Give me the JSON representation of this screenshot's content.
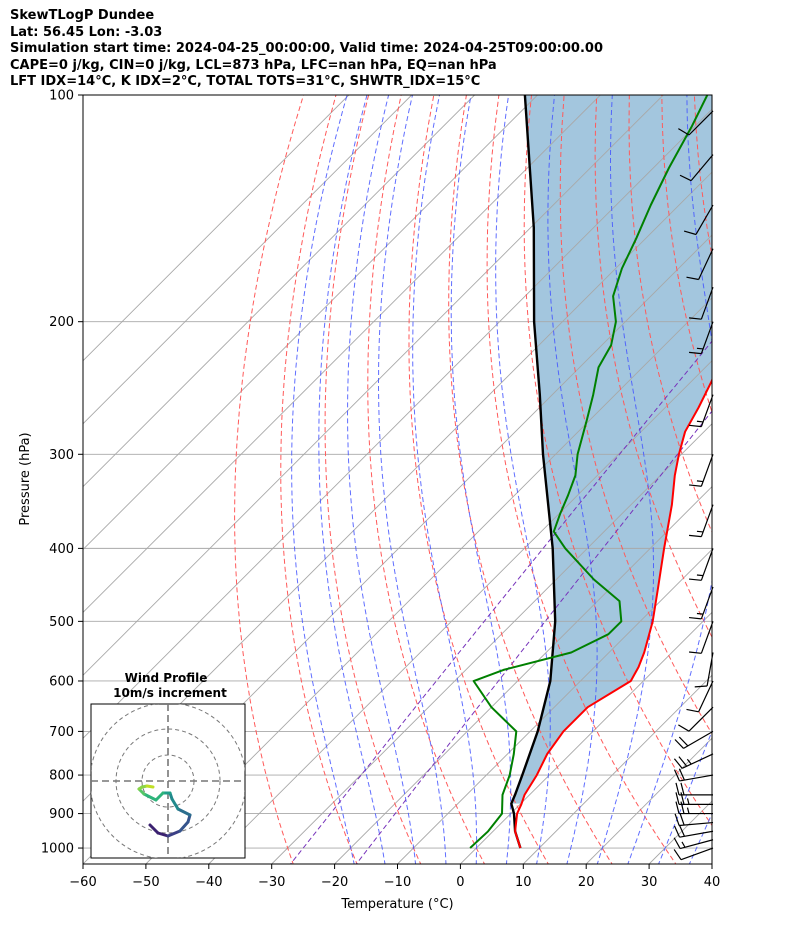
{
  "header": {
    "line1": "SkewTLogP Dundee",
    "line2": "Lat: 56.45   Lon: -3.03",
    "line3": "Simulation start time: 2024-04-25_00:00:00, Valid time: 2024-04-25T09:00:00.00",
    "line4": "CAPE=0 j/kg, CIN=0 j/kg, LCL=873 hPa, LFC=nan hPa, EQ=nan hPa",
    "line5": "LFT IDX=14°C, K IDX=2°C, TOTAL TOTS=31°C, SHWTR_IDX=15°C"
  },
  "colors": {
    "temperature": "#ff0000",
    "dewpoint": "#008000",
    "parcel": "#000000",
    "fill": "#a3c6de",
    "dry_adiabat": "#ff5a5a",
    "moist_adiabat": "#4455ff",
    "mixing_ratio": "#7733bb",
    "isotherm": "#a8a8a8"
  },
  "chart_data": {
    "type": "skewt",
    "xlabel": "Temperature (°C)",
    "ylabel": "Pressure (hPa)",
    "xlim": [
      -60,
      40
    ],
    "ylim": [
      1050,
      100
    ],
    "x_ticks": [
      -60,
      -50,
      -40,
      -30,
      -20,
      -10,
      0,
      10,
      20,
      30,
      40
    ],
    "x_tick_labels": [
      "−60",
      "−50",
      "−40",
      "−30",
      "−20",
      "−10",
      "0",
      "10",
      "20",
      "30",
      "40"
    ],
    "y_ticks": [
      1000,
      900,
      800,
      700,
      600,
      500,
      400,
      300,
      200,
      100
    ],
    "y_tick_labels": [
      "1000",
      "900",
      "800",
      "700",
      "600",
      "500",
      "400",
      "300",
      "200",
      "100"
    ],
    "temperature": [
      [
        1000,
        7.0
      ],
      [
        950,
        3.5
      ],
      [
        900,
        1.0
      ],
      [
        875,
        0.2
      ],
      [
        850,
        -0.8
      ],
      [
        800,
        -2.0
      ],
      [
        750,
        -3.7
      ],
      [
        700,
        -4.7
      ],
      [
        650,
        -4.7
      ],
      [
        600,
        -2.0
      ],
      [
        575,
        -3.0
      ],
      [
        550,
        -4.4
      ],
      [
        500,
        -8.0
      ],
      [
        450,
        -12.6
      ],
      [
        400,
        -17.8
      ],
      [
        350,
        -23.5
      ],
      [
        320,
        -27.7
      ],
      [
        300,
        -30.4
      ],
      [
        280,
        -33.0
      ],
      [
        260,
        -34.7
      ],
      [
        240,
        -36.8
      ],
      [
        220,
        -39.6
      ],
      [
        200,
        -42.6
      ],
      [
        180,
        -47.0
      ],
      [
        160,
        -51.4
      ],
      [
        140,
        -56.6
      ],
      [
        125,
        -60.8
      ],
      [
        110,
        -64.5
      ],
      [
        100,
        -68.0
      ]
    ],
    "dewpoint": [
      [
        1000,
        -1.0
      ],
      [
        950,
        -0.8
      ],
      [
        900,
        -1.4
      ],
      [
        850,
        -4.3
      ],
      [
        800,
        -6.3
      ],
      [
        750,
        -9.0
      ],
      [
        700,
        -12.2
      ],
      [
        650,
        -20.0
      ],
      [
        600,
        -27.0
      ],
      [
        580,
        -24.0
      ],
      [
        550,
        -16.0
      ],
      [
        520,
        -13.0
      ],
      [
        500,
        -13.0
      ],
      [
        470,
        -16.5
      ],
      [
        440,
        -24.0
      ],
      [
        400,
        -33.5
      ],
      [
        380,
        -38.0
      ],
      [
        360,
        -39.8
      ],
      [
        340,
        -41.5
      ],
      [
        320,
        -43.5
      ],
      [
        300,
        -46.5
      ],
      [
        270,
        -50.5
      ],
      [
        250,
        -53.5
      ],
      [
        230,
        -57.0
      ],
      [
        215,
        -58.5
      ],
      [
        200,
        -61.5
      ],
      [
        185,
        -66.0
      ],
      [
        170,
        -69.0
      ],
      [
        155,
        -71.5
      ],
      [
        140,
        -74.5
      ],
      [
        125,
        -77.5
      ],
      [
        110,
        -80.5
      ],
      [
        100,
        -83.0
      ]
    ],
    "parcel": [
      [
        1000,
        7.0
      ],
      [
        950,
        3.5
      ],
      [
        900,
        0.5
      ],
      [
        873,
        -1.5
      ],
      [
        850,
        -2.3
      ],
      [
        800,
        -4.3
      ],
      [
        700,
        -8.8
      ],
      [
        600,
        -14.8
      ],
      [
        500,
        -23.5
      ],
      [
        400,
        -35.5
      ],
      [
        300,
        -52.0
      ],
      [
        250,
        -62.0
      ],
      [
        200,
        -74.5
      ],
      [
        150,
        -89.5
      ],
      [
        100,
        -112.0
      ]
    ],
    "dry_adiabats_theta_c": [
      -30,
      -20,
      -10,
      0,
      10,
      20,
      30,
      40,
      50,
      60,
      70,
      80,
      90,
      100,
      110,
      120
    ],
    "isotherms_c": [
      -140,
      -130,
      -120,
      -110,
      -100,
      -90,
      -80,
      -70,
      -60,
      -50,
      -40,
      -30,
      -20,
      -10,
      0,
      10,
      20,
      30,
      40
    ],
    "moist_adiabats_start_c": [
      -20,
      -15,
      -10,
      -5,
      0,
      5,
      10,
      15,
      20,
      25,
      30,
      35
    ],
    "mixing_ratio_gkg": [
      0.4,
      1.0
    ],
    "wind_barbs": [
      {
        "p": 1000,
        "dir": 250,
        "kt": 12
      },
      {
        "p": 975,
        "dir": 255,
        "kt": 16
      },
      {
        "p": 950,
        "dir": 260,
        "kt": 20
      },
      {
        "p": 925,
        "dir": 265,
        "kt": 22
      },
      {
        "p": 900,
        "dir": 270,
        "kt": 24
      },
      {
        "p": 875,
        "dir": 270,
        "kt": 24
      },
      {
        "p": 850,
        "dir": 270,
        "kt": 22
      },
      {
        "p": 800,
        "dir": 260,
        "kt": 20
      },
      {
        "p": 750,
        "dir": 245,
        "kt": 24
      },
      {
        "p": 700,
        "dir": 240,
        "kt": 22
      },
      {
        "p": 650,
        "dir": 225,
        "kt": 10
      },
      {
        "p": 600,
        "dir": 205,
        "kt": 10
      },
      {
        "p": 550,
        "dir": 190,
        "kt": 10
      },
      {
        "p": 500,
        "dir": 200,
        "kt": 12
      },
      {
        "p": 450,
        "dir": 200,
        "kt": 14
      },
      {
        "p": 400,
        "dir": 200,
        "kt": 14
      },
      {
        "p": 350,
        "dir": 200,
        "kt": 14
      },
      {
        "p": 300,
        "dir": 200,
        "kt": 14
      },
      {
        "p": 250,
        "dir": 200,
        "kt": 14
      },
      {
        "p": 200,
        "dir": 200,
        "kt": 14
      },
      {
        "p": 180,
        "dir": 200,
        "kt": 12
      },
      {
        "p": 160,
        "dir": 205,
        "kt": 10
      },
      {
        "p": 140,
        "dir": 210,
        "kt": 10
      },
      {
        "p": 120,
        "dir": 220,
        "kt": 10
      },
      {
        "p": 105,
        "dir": 225,
        "kt": 10
      }
    ],
    "inset": {
      "title": "Wind Profile",
      "subtitle": "10m/s increment",
      "hodograph": [
        {
          "u": -1.8,
          "v": -4.4
        },
        {
          "u": -1.0,
          "v": -5.2
        },
        {
          "u": 0.0,
          "v": -5.5
        },
        {
          "u": 1.2,
          "v": -5.0
        },
        {
          "u": 2.0,
          "v": -4.1
        },
        {
          "u": 2.2,
          "v": -3.4
        },
        {
          "u": 1.0,
          "v": -2.8
        },
        {
          "u": 0.4,
          "v": -1.8
        },
        {
          "u": 0.2,
          "v": -1.2
        },
        {
          "u": -0.5,
          "v": -1.2
        },
        {
          "u": -1.2,
          "v": -1.9
        },
        {
          "u": -2.4,
          "v": -1.3
        },
        {
          "u": -2.9,
          "v": -0.8
        },
        {
          "u": -2.6,
          "v": -0.6
        },
        {
          "u": -2.1,
          "v": -0.5
        },
        {
          "u": -1.5,
          "v": -0.6
        }
      ]
    }
  }
}
